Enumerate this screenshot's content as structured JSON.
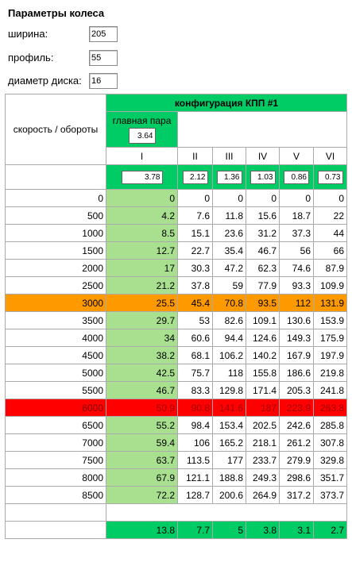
{
  "params": {
    "title": "Параметры колеса",
    "width_label": "ширина:",
    "width_value": "205",
    "profile_label": "профиль:",
    "profile_value": "55",
    "diameter_label": "диаметр диска:",
    "diameter_value": "16"
  },
  "table": {
    "config_title": "конфигурация КПП #1",
    "speed_rpm_label": "скорость / обороты",
    "main_pair_label": "главная пара",
    "main_pair_value": "3.64",
    "gears": [
      "I",
      "II",
      "III",
      "IV",
      "V",
      "VI"
    ],
    "ratios": [
      "3.78",
      "2.12",
      "1.36",
      "1.03",
      "0.86",
      "0.73"
    ],
    "rows": [
      {
        "rpm": "0",
        "v": [
          "0",
          "0",
          "0",
          "0",
          "0",
          "0"
        ]
      },
      {
        "rpm": "500",
        "v": [
          "4.2",
          "7.6",
          "11.8",
          "15.6",
          "18.7",
          "22"
        ]
      },
      {
        "rpm": "1000",
        "v": [
          "8.5",
          "15.1",
          "23.6",
          "31.2",
          "37.3",
          "44"
        ]
      },
      {
        "rpm": "1500",
        "v": [
          "12.7",
          "22.7",
          "35.4",
          "46.7",
          "56",
          "66"
        ]
      },
      {
        "rpm": "2000",
        "v": [
          "17",
          "30.3",
          "47.2",
          "62.3",
          "74.6",
          "87.9"
        ]
      },
      {
        "rpm": "2500",
        "v": [
          "21.2",
          "37.8",
          "59",
          "77.9",
          "93.3",
          "109.9"
        ]
      },
      {
        "rpm": "3000",
        "v": [
          "25.5",
          "45.4",
          "70.8",
          "93.5",
          "112",
          "131.9"
        ],
        "hl": "orange"
      },
      {
        "rpm": "3500",
        "v": [
          "29.7",
          "53",
          "82.6",
          "109.1",
          "130.6",
          "153.9"
        ]
      },
      {
        "rpm": "4000",
        "v": [
          "34",
          "60.6",
          "94.4",
          "124.6",
          "149.3",
          "175.9"
        ]
      },
      {
        "rpm": "4500",
        "v": [
          "38.2",
          "68.1",
          "106.2",
          "140.2",
          "167.9",
          "197.9"
        ]
      },
      {
        "rpm": "5000",
        "v": [
          "42.5",
          "75.7",
          "118",
          "155.8",
          "186.6",
          "219.8"
        ]
      },
      {
        "rpm": "5500",
        "v": [
          "46.7",
          "83.3",
          "129.8",
          "171.4",
          "205.3",
          "241.8"
        ]
      },
      {
        "rpm": "6000",
        "v": [
          "50.9",
          "90.8",
          "141.6",
          "187",
          "223.9",
          "263.8"
        ],
        "hl": "red"
      },
      {
        "rpm": "6500",
        "v": [
          "55.2",
          "98.4",
          "153.4",
          "202.5",
          "242.6",
          "285.8"
        ]
      },
      {
        "rpm": "7000",
        "v": [
          "59.4",
          "106",
          "165.2",
          "218.1",
          "261.2",
          "307.8"
        ]
      },
      {
        "rpm": "7500",
        "v": [
          "63.7",
          "113.5",
          "177",
          "233.7",
          "279.9",
          "329.8"
        ]
      },
      {
        "rpm": "8000",
        "v": [
          "67.9",
          "121.1",
          "188.8",
          "249.3",
          "298.6",
          "351.7"
        ]
      },
      {
        "rpm": "8500",
        "v": [
          "72.2",
          "128.7",
          "200.6",
          "264.9",
          "317.2",
          "373.7"
        ]
      }
    ],
    "footer": [
      "13.8",
      "7.7",
      "5",
      "3.8",
      "3.1",
      "2.7"
    ]
  }
}
